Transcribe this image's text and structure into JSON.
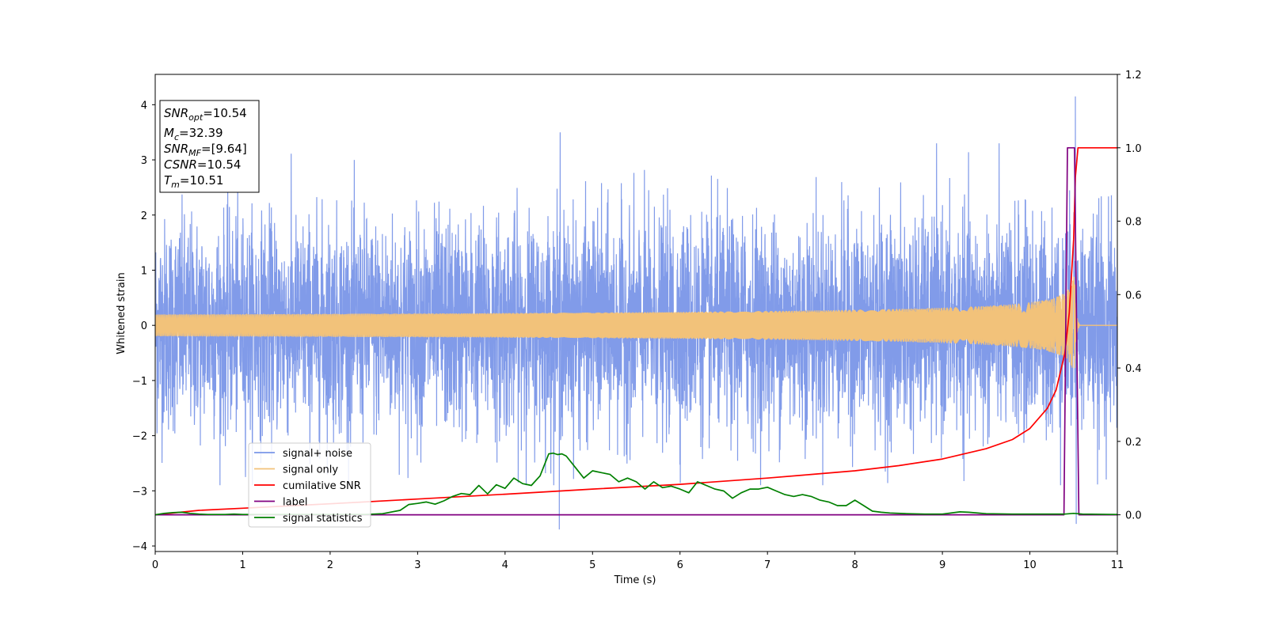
{
  "chart_data": {
    "type": "line",
    "xlabel": "Time (s)",
    "ylabel": "Whitened strain",
    "xlim": [
      0,
      11
    ],
    "ylim": [
      -4.1,
      4.55
    ],
    "y2lim": [
      -0.1,
      1.2
    ],
    "x_ticks": [
      "0",
      "1",
      "2",
      "3",
      "4",
      "5",
      "6",
      "7",
      "8",
      "9",
      "10",
      "11"
    ],
    "y_ticks": [
      "4",
      "3",
      "2",
      "1",
      "0",
      "−1",
      "−2",
      "−3",
      "−4"
    ],
    "y_tick_values": [
      4,
      3,
      2,
      1,
      0,
      -1,
      -2,
      -3,
      -4
    ],
    "y2_ticks": [
      "0.0",
      "0.2",
      "0.4",
      "0.6",
      "0.8",
      "1.0",
      "1.2"
    ],
    "y2_tick_values": [
      0.0,
      0.2,
      0.4,
      0.6,
      0.8,
      1.0,
      1.2
    ],
    "legend_position": "lower-left",
    "info_box": {
      "position": "top-left",
      "lines": [
        {
          "sym": "SNR",
          "sub": "opt",
          "value": "=10.54"
        },
        {
          "sym": "M",
          "sub": "c",
          "value": "=32.39"
        },
        {
          "sym": "SNR",
          "sub": "MF",
          "value": "=[9.64]"
        },
        {
          "sym": "CSNR",
          "sub": "",
          "value": "=10.54"
        },
        {
          "sym": "T",
          "sub": "m",
          "value": "=10.51"
        }
      ]
    },
    "series": [
      {
        "name": "signal+ noise",
        "color": "#7a96e8",
        "axis": "left",
        "description_values": "dense whitened strain noise, approx range -2.9 to 3.5, spike at x=10.52 reaching 4.15, dip at x=4.62 to -3.7",
        "spikes": [
          [
            4.62,
            -3.7
          ],
          [
            10.52,
            4.15
          ],
          [
            10.53,
            -3.6
          ],
          [
            4.63,
            3.5
          ]
        ]
      },
      {
        "name": "signal only",
        "color": "#f2c27a",
        "axis": "left",
        "chirp_merger_time": 10.51,
        "chirp_peak_amplitude": 0.95
      },
      {
        "name": "cumilative SNR",
        "color": "#ff0000",
        "axis": "right",
        "x": [
          0,
          0.5,
          1,
          2,
          3,
          4,
          5,
          6,
          7,
          7.5,
          8,
          8.5,
          9,
          9.5,
          9.8,
          10,
          10.2,
          10.3,
          10.4,
          10.45,
          10.5,
          10.52,
          10.55,
          11
        ],
        "y": [
          0.0,
          0.012,
          0.018,
          0.03,
          0.043,
          0.056,
          0.07,
          0.083,
          0.1,
          0.11,
          0.12,
          0.134,
          0.152,
          0.18,
          0.205,
          0.235,
          0.29,
          0.34,
          0.44,
          0.55,
          0.75,
          0.92,
          1.0,
          1.0
        ]
      },
      {
        "name": "label",
        "color": "#800080",
        "axis": "right",
        "x": [
          0,
          10.39,
          10.43,
          10.51,
          10.56,
          11
        ],
        "y": [
          0,
          0,
          1,
          1,
          0,
          0
        ]
      },
      {
        "name": "signal statistics",
        "color": "#008000",
        "axis": "right",
        "x": [
          0,
          0.1,
          0.2,
          0.3,
          0.4,
          0.5,
          0.6,
          0.7,
          0.8,
          0.9,
          1.0,
          1.2,
          1.4,
          1.6,
          1.8,
          2.0,
          2.2,
          2.4,
          2.6,
          2.8,
          2.9,
          3.0,
          3.1,
          3.2,
          3.3,
          3.4,
          3.5,
          3.6,
          3.7,
          3.8,
          3.9,
          4.0,
          4.1,
          4.2,
          4.3,
          4.4,
          4.5,
          4.55,
          4.6,
          4.65,
          4.7,
          4.8,
          4.9,
          5.0,
          5.1,
          5.2,
          5.3,
          5.4,
          5.5,
          5.6,
          5.7,
          5.8,
          5.9,
          6.0,
          6.1,
          6.2,
          6.3,
          6.4,
          6.5,
          6.6,
          6.7,
          6.8,
          6.9,
          7.0,
          7.1,
          7.2,
          7.3,
          7.4,
          7.5,
          7.6,
          7.7,
          7.8,
          7.9,
          8.0,
          8.1,
          8.2,
          8.3,
          8.4,
          8.6,
          8.8,
          9.0,
          9.2,
          9.3,
          9.5,
          9.8,
          10.0,
          10.2,
          10.4,
          10.5,
          10.6,
          11.0
        ],
        "y": [
          0.0,
          0.004,
          0.006,
          0.007,
          0.004,
          0.002,
          0.001,
          0.001,
          0.001,
          0.002,
          0.001,
          0.001,
          0.001,
          0.001,
          0.001,
          0.001,
          0.001,
          0.001,
          0.003,
          0.012,
          0.028,
          0.031,
          0.035,
          0.029,
          0.038,
          0.05,
          0.058,
          0.055,
          0.08,
          0.057,
          0.082,
          0.072,
          0.1,
          0.085,
          0.08,
          0.106,
          0.166,
          0.168,
          0.164,
          0.166,
          0.16,
          0.13,
          0.1,
          0.12,
          0.115,
          0.11,
          0.09,
          0.1,
          0.09,
          0.07,
          0.09,
          0.074,
          0.078,
          0.07,
          0.06,
          0.09,
          0.08,
          0.07,
          0.065,
          0.045,
          0.06,
          0.07,
          0.07,
          0.075,
          0.065,
          0.055,
          0.05,
          0.055,
          0.05,
          0.04,
          0.035,
          0.025,
          0.025,
          0.04,
          0.025,
          0.01,
          0.007,
          0.005,
          0.003,
          0.002,
          0.002,
          0.008,
          0.007,
          0.003,
          0.002,
          0.002,
          0.002,
          0.002,
          0.004,
          0.002,
          0.001
        ]
      }
    ]
  }
}
